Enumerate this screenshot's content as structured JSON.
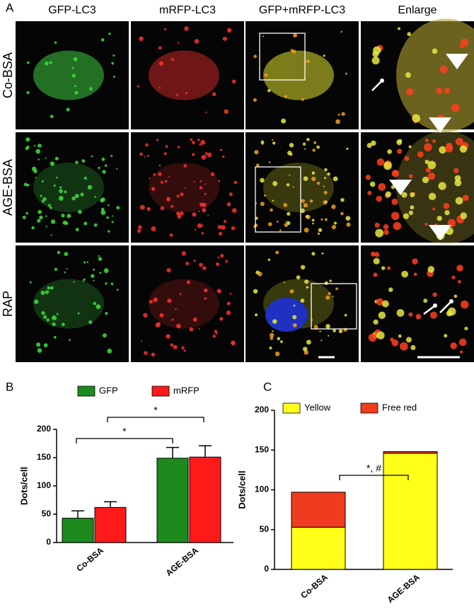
{
  "panel_a": {
    "label": "A",
    "columns": [
      "GFP-LC3",
      "mRFP-LC3",
      "GFP+mRFP-LC3",
      "Enlarge"
    ],
    "rows": [
      "Co-BSA",
      "AGE-BSA",
      "RAP"
    ]
  },
  "chart_data": [
    {
      "type": "bar",
      "label": "B",
      "ylabel": "Dots/cell",
      "categories": [
        "Co-BSA",
        "AGE-BSA"
      ],
      "series": [
        {
          "name": "GFP",
          "color": "#1e8a1e",
          "values": [
            43,
            149
          ],
          "errors": [
            13,
            19
          ]
        },
        {
          "name": "mRFP",
          "color": "#ff1a1a",
          "values": [
            62,
            151
          ],
          "errors": [
            10,
            20
          ]
        }
      ],
      "ylim": [
        0,
        200
      ],
      "yticks": [
        0,
        50,
        100,
        150,
        200
      ],
      "annotations": [
        "*",
        "*"
      ]
    },
    {
      "type": "stacked_bar",
      "label": "C",
      "ylabel": "Dots/cell",
      "categories": [
        "Co-BSA",
        "AGE-BSA"
      ],
      "series": [
        {
          "name": "Yellow",
          "color": "#ffff1a",
          "values": [
            53,
            146
          ]
        },
        {
          "name": "Free red",
          "color": "#f03c1e",
          "values": [
            44,
            2
          ]
        }
      ],
      "ylim": [
        0,
        200
      ],
      "yticks": [
        0,
        50,
        100,
        150,
        200
      ],
      "annotations": [
        "*, #"
      ]
    }
  ]
}
